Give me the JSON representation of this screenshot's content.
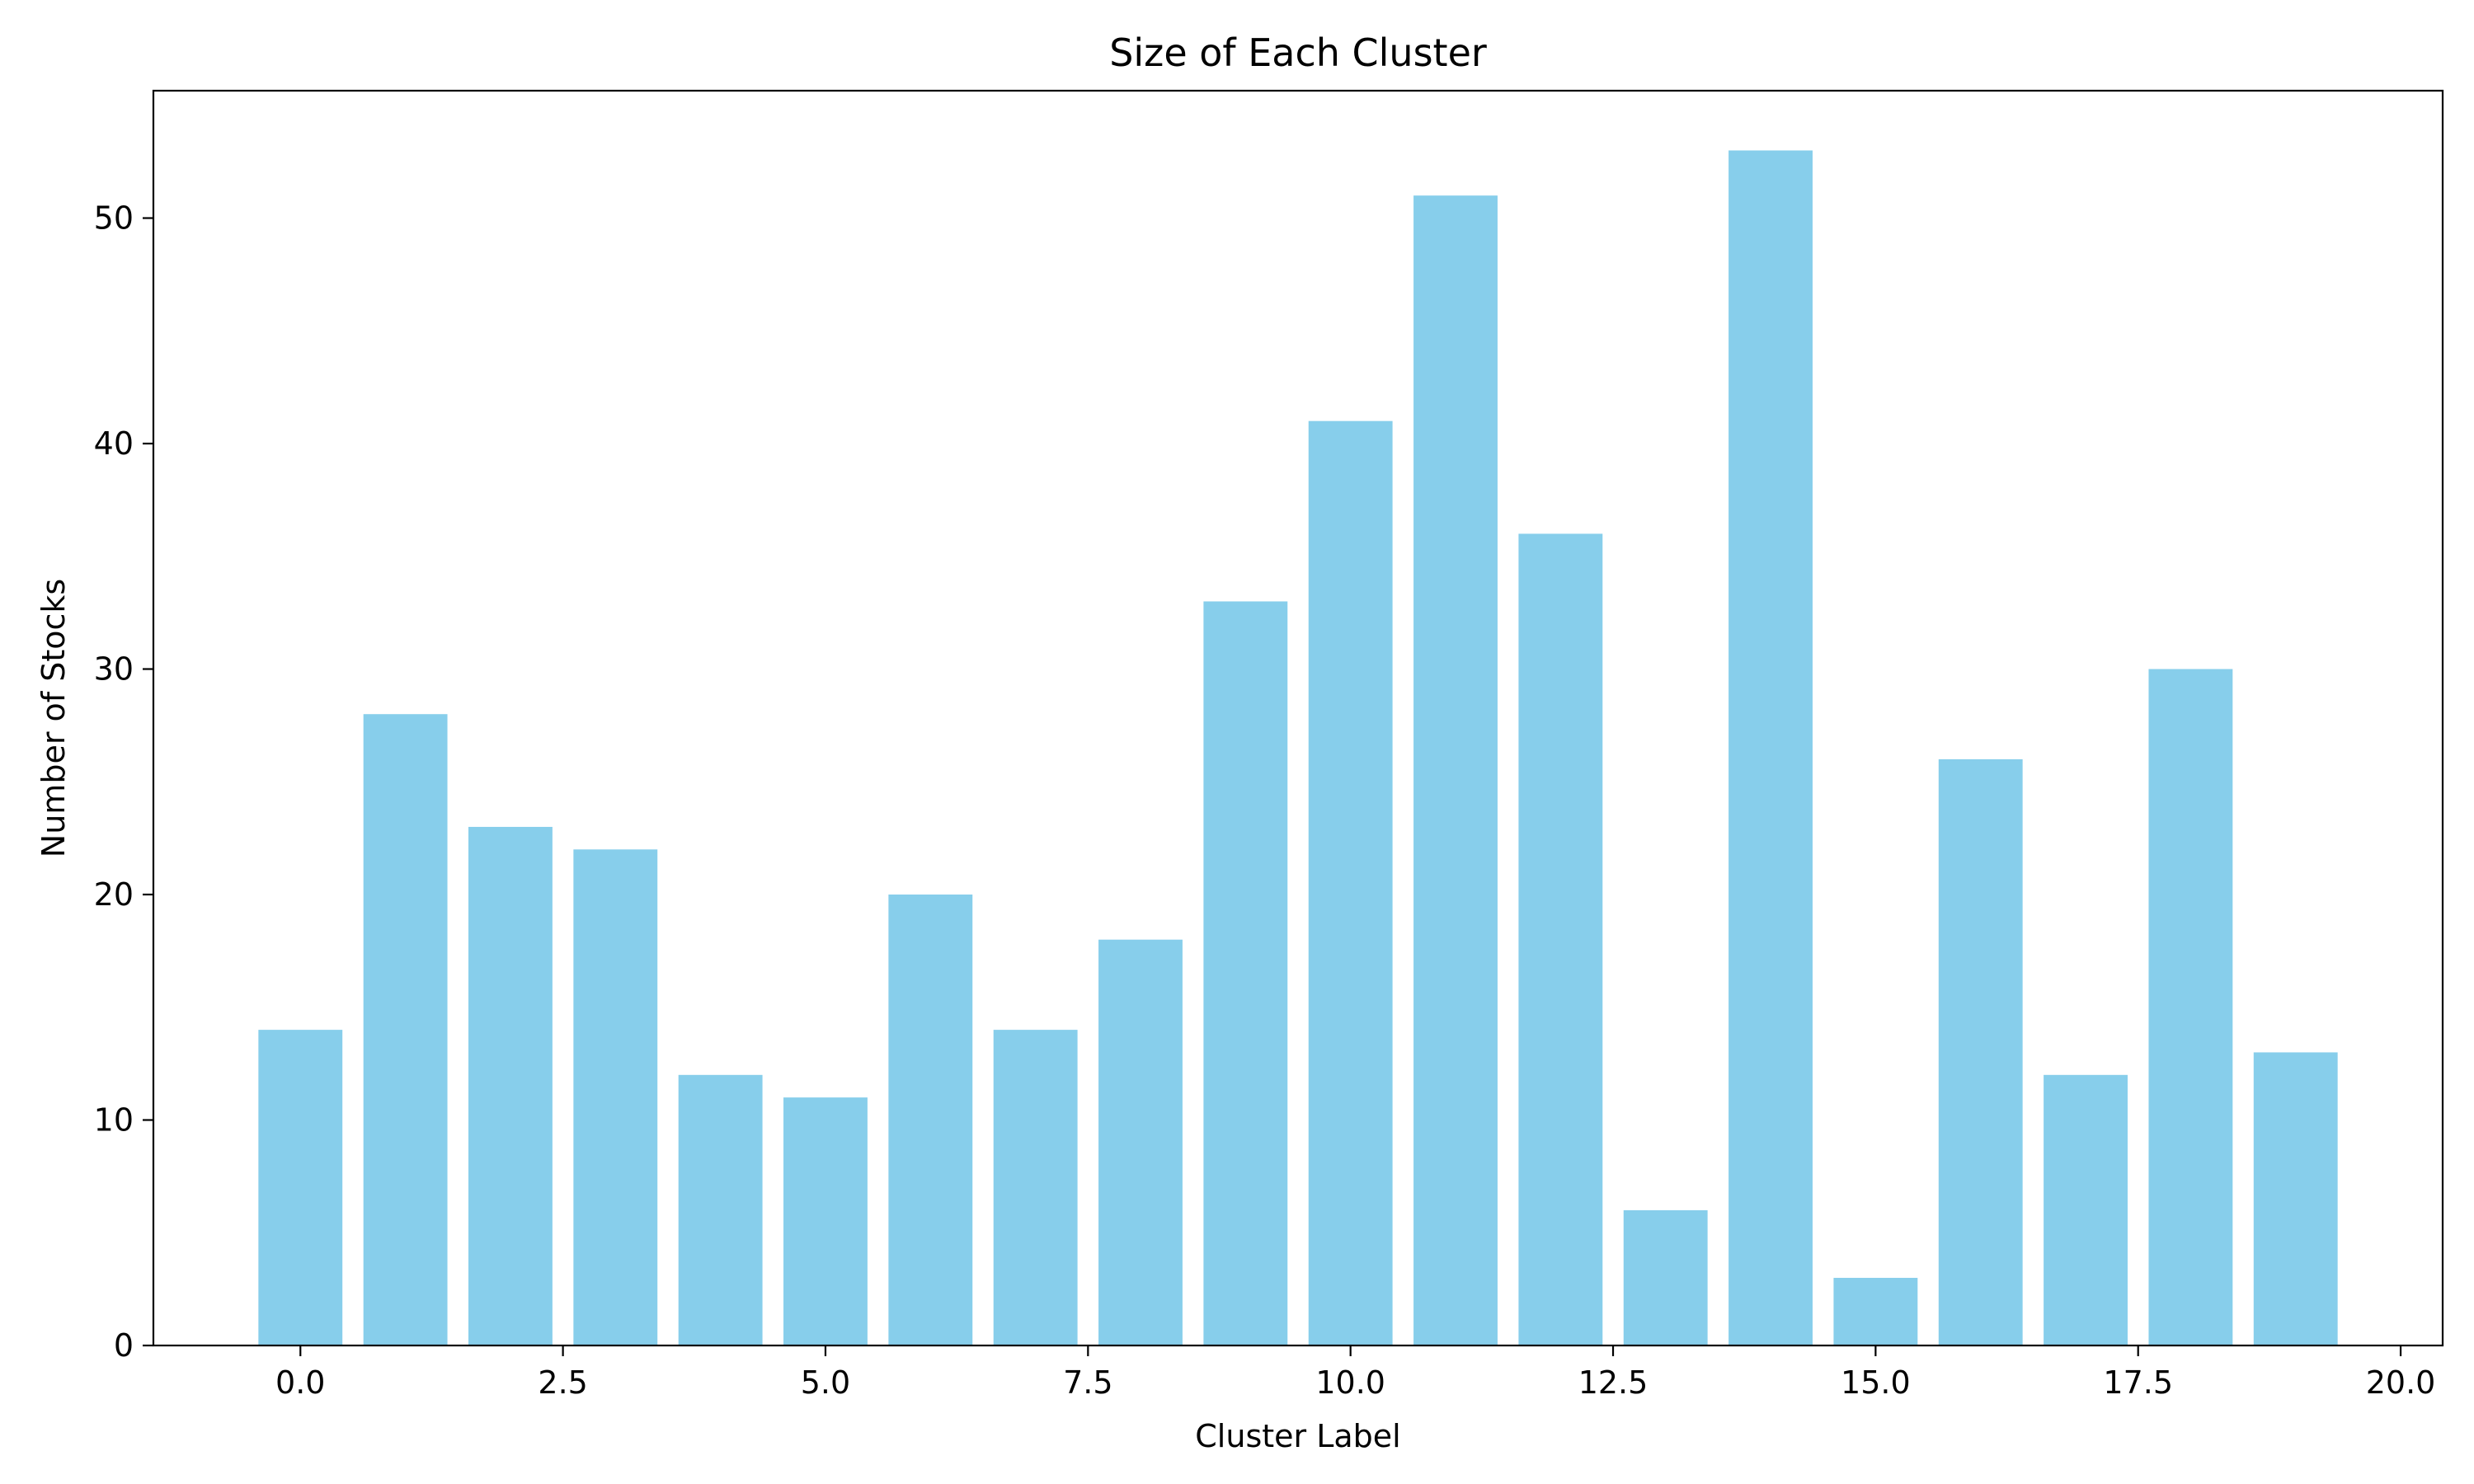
{
  "chart_data": {
    "type": "bar",
    "title": "Size of Each Cluster",
    "xlabel": "Cluster Label",
    "ylabel": "Number of Stocks",
    "x": [
      0,
      1,
      2,
      3,
      4,
      5,
      6,
      7,
      8,
      9,
      10,
      11,
      12,
      13,
      14,
      15,
      16,
      17,
      18,
      19
    ],
    "values": [
      14,
      28,
      23,
      22,
      12,
      11,
      20,
      14,
      18,
      33,
      41,
      51,
      36,
      6,
      53,
      3,
      26,
      12,
      30,
      13
    ],
    "bar_width": 0.8,
    "xlim": [
      -1.4,
      20.4
    ],
    "ylim": [
      0,
      55.65
    ],
    "xticks": [
      0.0,
      2.5,
      5.0,
      7.5,
      10.0,
      12.5,
      15.0,
      17.5,
      20.0
    ],
    "xtick_labels": [
      "0.0",
      "2.5",
      "5.0",
      "7.5",
      "10.0",
      "12.5",
      "15.0",
      "17.5",
      "20.0"
    ],
    "yticks": [
      0,
      10,
      20,
      30,
      40,
      50
    ],
    "ytick_labels": [
      "0",
      "10",
      "20",
      "30",
      "40",
      "50"
    ],
    "bar_color": "#87ceeb",
    "grid": false,
    "legend": "none"
  }
}
